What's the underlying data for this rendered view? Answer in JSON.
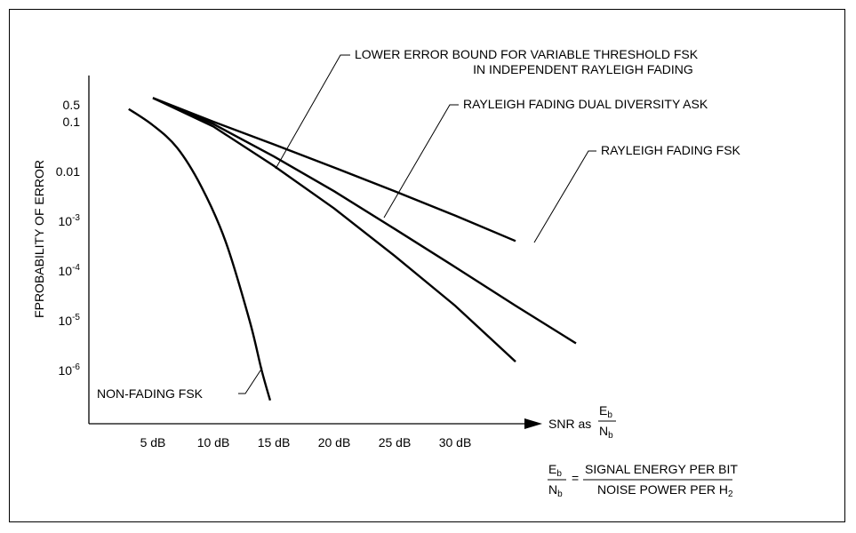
{
  "chart_data": {
    "type": "line",
    "ylabel": "FPROBABILITY OF ERROR",
    "xlabel": {
      "prefix": "SNR as",
      "num": "E",
      "num_sub": "b",
      "den": "N",
      "den_sub": "b"
    },
    "x_ticks": [
      "5 dB",
      "10 dB",
      "15 dB",
      "20 dB",
      "25 dB",
      "30 dB"
    ],
    "y_ticks": [
      {
        "base": "0.5",
        "exp": ""
      },
      {
        "base": "0.1",
        "exp": ""
      },
      {
        "base": "0.01",
        "exp": ""
      },
      {
        "base": "10",
        "exp": "-3"
      },
      {
        "base": "10",
        "exp": "-4"
      },
      {
        "base": "10",
        "exp": "-5"
      },
      {
        "base": "10",
        "exp": "-6"
      }
    ],
    "y_scale": "log",
    "grid": false,
    "series": [
      {
        "name": "NON-FADING FSK",
        "x": [
          3,
          5,
          7,
          9,
          11,
          13,
          14,
          14.7
        ],
        "y": [
          0.18,
          0.085,
          0.03,
          0.005,
          0.0004,
          1e-05,
          1e-06,
          2.5e-07
        ]
      },
      {
        "name": "RAYLEIGH FADING FSK",
        "x": [
          5,
          10,
          15,
          20,
          25,
          30,
          35
        ],
        "y": [
          0.3,
          0.1,
          0.035,
          0.012,
          0.004,
          0.0013,
          0.0004
        ]
      },
      {
        "name": "RAYLEIGH FADING DUAL DIVERSITY ASK",
        "x": [
          5,
          10,
          15,
          20,
          25,
          30,
          35,
          40
        ],
        "y": [
          0.3,
          0.09,
          0.02,
          0.004,
          0.0007,
          0.00012,
          2e-05,
          3.5e-06
        ]
      },
      {
        "name": "LOWER ERROR BOUND FOR VARIABLE THRESHOLD FSK IN INDEPENDENT RAYLEIGH FADING",
        "x": [
          5,
          10,
          15,
          20,
          25,
          30,
          35
        ],
        "y": [
          0.3,
          0.08,
          0.013,
          0.0018,
          0.0002,
          2e-05,
          1.5e-06
        ]
      }
    ],
    "annotations": {
      "bound_line1": "LOWER ERROR BOUND FOR VARIABLE THRESHOLD FSK",
      "bound_line2": "IN INDEPENDENT RAYLEIGH FADING",
      "dual_ask": "RAYLEIGH FADING DUAL DIVERSITY ASK",
      "rayleigh_fsk": "RAYLEIGH FADING FSK",
      "non_fading": "NON-FADING FSK"
    },
    "formula": {
      "num": "E",
      "num_sub": "b",
      "den": "N",
      "den_sub": "b",
      "equals": "=",
      "rhs_top": "SIGNAL ENERGY PER BIT",
      "rhs_bottom_main": "NOISE POWER PER H",
      "rhs_bottom_sub": "2"
    }
  }
}
